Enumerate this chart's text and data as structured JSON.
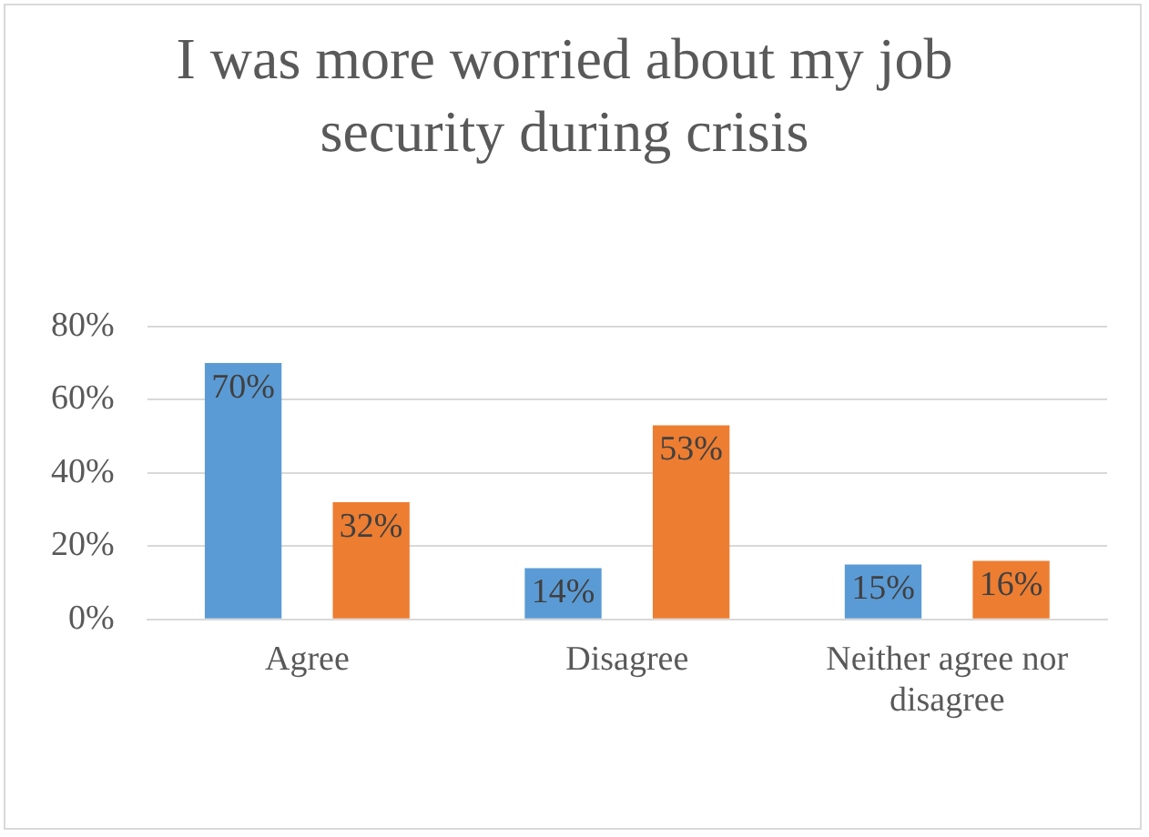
{
  "chart_data": {
    "type": "bar",
    "title": "I was more worried about my job security during crisis",
    "categories": [
      "Agree",
      "Disagree",
      "Neither agree nor disagree"
    ],
    "series": [
      {
        "color": "#5b9bd5",
        "values": [
          70,
          14,
          15
        ],
        "value_labels": [
          "70%",
          "14%",
          "15%"
        ]
      },
      {
        "color": "#ed7d31",
        "values": [
          32,
          53,
          16
        ],
        "value_labels": [
          "32%",
          "53%",
          "16%"
        ]
      }
    ],
    "ylim": [
      0,
      80
    ],
    "yticks": [
      {
        "value": 0,
        "label": "0%"
      },
      {
        "value": 20,
        "label": "20%"
      },
      {
        "value": 40,
        "label": "40%"
      },
      {
        "value": 60,
        "label": "60%"
      },
      {
        "value": 80,
        "label": "80%"
      }
    ],
    "grid": "y",
    "legend": false
  }
}
